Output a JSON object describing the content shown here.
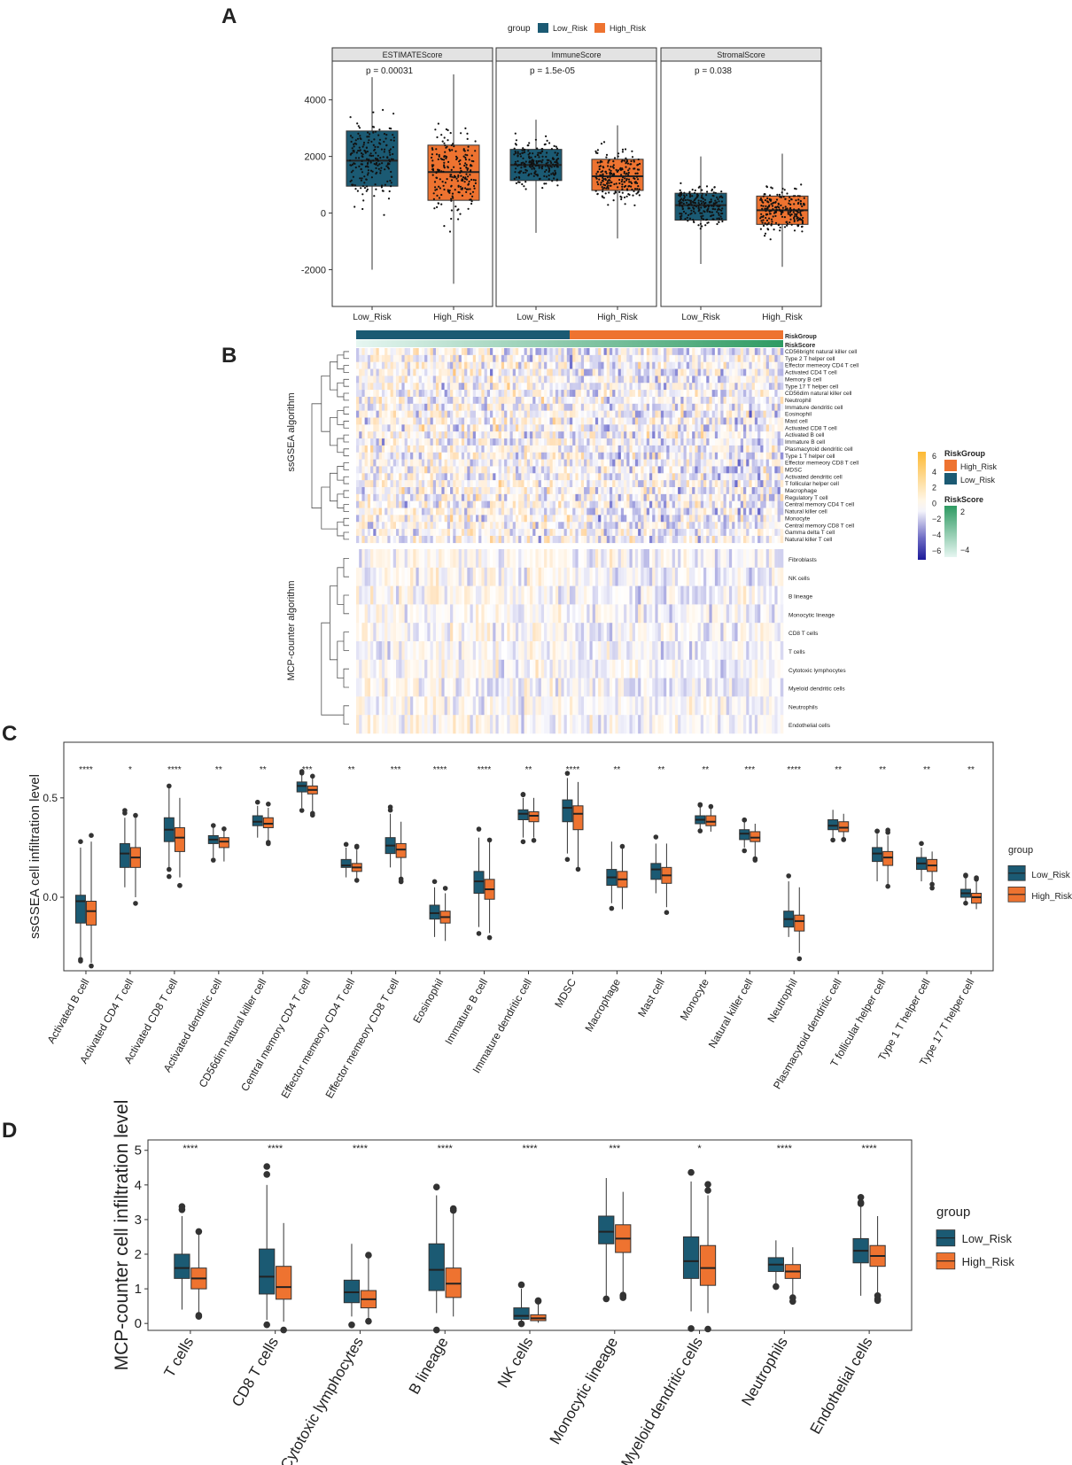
{
  "colors": {
    "low": "#1b5a73",
    "high": "#ee7330",
    "strip": "#e3e3e3",
    "pos": "#fdb933",
    "neg": "#1c1a9a",
    "score_light": "#e6f6f1",
    "score_dark": "#2e9a62"
  },
  "panel_labels": {
    "a": "A",
    "b": "B",
    "c": "C",
    "d": "D"
  },
  "chart_data": [
    {
      "id": "A",
      "type": "box",
      "legend_title": "group",
      "groups": [
        "Low_Risk",
        "High_Risk"
      ],
      "ylim": [
        -2800,
        5400
      ],
      "yticks": [
        -2000,
        0,
        2000,
        4000
      ],
      "facets": [
        {
          "title": "ESTIMATEScore",
          "p": "p = 0.00031",
          "boxes": [
            {
              "q1": 950,
              "med": 1850,
              "q3": 2900,
              "lo": -2000,
              "hi": 4800
            },
            {
              "q1": 450,
              "med": 1450,
              "q3": 2400,
              "lo": -2500,
              "hi": 4900
            }
          ]
        },
        {
          "title": "ImmuneScore",
          "p": "p = 1.5e-05",
          "boxes": [
            {
              "q1": 1150,
              "med": 1700,
              "q3": 2250,
              "lo": -700,
              "hi": 3300
            },
            {
              "q1": 800,
              "med": 1300,
              "q3": 1900,
              "lo": -900,
              "hi": 3100
            }
          ]
        },
        {
          "title": "StromalScore",
          "p": "p = 0.038",
          "boxes": [
            {
              "q1": -250,
              "med": 280,
              "q3": 700,
              "lo": -1800,
              "hi": 2000
            },
            {
              "q1": -400,
              "med": 100,
              "q3": 600,
              "lo": -1900,
              "hi": 2100
            }
          ]
        }
      ]
    },
    {
      "id": "B",
      "type": "heatmap",
      "annotations": [
        "RiskGroup",
        "RiskScore"
      ],
      "section_titles": [
        "ssGSEA algorithm",
        "MCP-counter algorithm"
      ],
      "ssgsea_rows": [
        "CD56bright natural killer cell",
        "Type 2 T helper cell",
        "Effector memeory CD4 T cell",
        "Activated CD4 T cell",
        "Memory B cell",
        "Type 17 T helper cell",
        "CD56dim natural killer cell",
        "Neutrophil",
        "Immature dendritic cell",
        "Eosinophil",
        "Mast cell",
        "Activated CD8 T cell",
        "Activated B cell",
        "Immature  B cell",
        "Plasmacytoid dendritic cell",
        "Type 1 T helper cell",
        "Effector memeory CD8 T cell",
        "MDSC",
        "Activated dendritic cell",
        "T follicular helper cell",
        "Macrophage",
        "Regulatory T cell",
        "Central memory CD4 T cell",
        "Natural killer cell",
        "Monocyte",
        "Central memory CD8 T cell",
        "Gamma delta T cell",
        "Natural killer T cell"
      ],
      "mcp_rows": [
        "Fibroblasts",
        "NK cells",
        "B lineage",
        "Monocytic lineage",
        "CD8 T cells",
        "T cells",
        "Cytotoxic lymphocytes",
        "Myeloid dendritic cells",
        "Neutrophils",
        "Endothelial cells"
      ],
      "legend": {
        "scale_ticks": [
          "6",
          "4",
          "2",
          "0",
          "−2",
          "−4",
          "−6"
        ],
        "riskgroup_title": "RiskGroup",
        "riskgroup_items": [
          "High_Risk",
          "Low_Risk"
        ],
        "riskscore_title": "RiskScore",
        "riskscore_ticks": [
          "2",
          "−4"
        ]
      }
    },
    {
      "id": "C",
      "type": "box",
      "ylabel": "ssGSEA cell infiltration level",
      "legend_title": "group",
      "groups": [
        "Low_Risk",
        "High_Risk"
      ],
      "ylim": [
        -0.37,
        0.78
      ],
      "yticks": [
        0.0,
        0.5
      ],
      "ytick_labels": [
        "0.0",
        "0.5"
      ],
      "categories": [
        "Activated B cell",
        "Activated CD4 T cell",
        "Activated CD8 T cell",
        "Activated dendritic cell",
        "CD56dim natural killer cell",
        "Central memory CD4 T cell",
        "Effector memeory CD4 T cell",
        "Effector memeory CD8 T cell",
        "Eosinophil",
        "Immature  B cell",
        "Immature dendritic cell",
        "MDSC",
        "Macrophage",
        "Mast cell",
        "Monocyte",
        "Natural killer cell",
        "Neutrophil",
        "Plasmacytoid dendritic cell",
        "T follicular helper cell",
        "Type 1 T helper cell",
        "Type 17 T helper cell"
      ],
      "significance": [
        "****",
        "*",
        "****",
        "**",
        "**",
        "***",
        "**",
        "***",
        "****",
        "****",
        "**",
        "****",
        "**",
        "**",
        "**",
        "***",
        "****",
        "**",
        "**",
        "**",
        "**"
      ],
      "low": [
        [
          -0.3,
          -0.13,
          -0.02,
          0.01,
          0.25
        ],
        [
          0.05,
          0.15,
          0.22,
          0.27,
          0.4
        ],
        [
          0.15,
          0.28,
          0.34,
          0.4,
          0.55
        ],
        [
          0.2,
          0.27,
          0.29,
          0.31,
          0.35
        ],
        [
          0.3,
          0.36,
          0.38,
          0.41,
          0.46
        ],
        [
          0.45,
          0.53,
          0.56,
          0.58,
          0.62
        ],
        [
          0.1,
          0.15,
          0.16,
          0.19,
          0.25
        ],
        [
          0.15,
          0.22,
          0.26,
          0.3,
          0.42
        ],
        [
          -0.2,
          -0.11,
          -0.08,
          -0.04,
          0.05
        ],
        [
          -0.15,
          0.02,
          0.08,
          0.13,
          0.3
        ],
        [
          0.3,
          0.39,
          0.42,
          0.44,
          0.5
        ],
        [
          0.22,
          0.38,
          0.45,
          0.49,
          0.6
        ],
        [
          -0.03,
          0.06,
          0.1,
          0.14,
          0.28
        ],
        [
          0.02,
          0.09,
          0.14,
          0.17,
          0.27
        ],
        [
          0.34,
          0.37,
          0.39,
          0.41,
          0.46
        ],
        [
          0.25,
          0.29,
          0.32,
          0.34,
          0.38
        ],
        [
          -0.2,
          -0.15,
          -0.11,
          -0.07,
          0.08
        ],
        [
          0.3,
          0.34,
          0.36,
          0.39,
          0.44
        ],
        [
          0.08,
          0.18,
          0.22,
          0.25,
          0.32
        ],
        [
          0.08,
          0.14,
          0.17,
          0.2,
          0.25
        ],
        [
          -0.02,
          0.0,
          0.02,
          0.04,
          0.1
        ]
      ],
      "high": [
        [
          -0.33,
          -0.14,
          -0.07,
          -0.02,
          0.28
        ],
        [
          0.0,
          0.15,
          0.2,
          0.25,
          0.4
        ],
        [
          0.1,
          0.23,
          0.3,
          0.35,
          0.5
        ],
        [
          0.18,
          0.25,
          0.28,
          0.3,
          0.34
        ],
        [
          0.28,
          0.35,
          0.37,
          0.4,
          0.45
        ],
        [
          0.43,
          0.52,
          0.54,
          0.56,
          0.6
        ],
        [
          0.09,
          0.13,
          0.15,
          0.17,
          0.24
        ],
        [
          0.1,
          0.2,
          0.24,
          0.27,
          0.38
        ],
        [
          -0.22,
          -0.13,
          -0.1,
          -0.07,
          0.02
        ],
        [
          -0.18,
          -0.01,
          0.04,
          0.09,
          0.28
        ],
        [
          0.3,
          0.38,
          0.41,
          0.43,
          0.5
        ],
        [
          0.15,
          0.34,
          0.42,
          0.46,
          0.58
        ],
        [
          -0.06,
          0.05,
          0.09,
          0.13,
          0.25
        ],
        [
          -0.05,
          0.07,
          0.11,
          0.15,
          0.27
        ],
        [
          0.33,
          0.36,
          0.38,
          0.41,
          0.45
        ],
        [
          0.2,
          0.28,
          0.3,
          0.33,
          0.37
        ],
        [
          -0.28,
          -0.17,
          -0.12,
          -0.09,
          0.05
        ],
        [
          0.3,
          0.33,
          0.35,
          0.38,
          0.42
        ],
        [
          0.06,
          0.16,
          0.2,
          0.23,
          0.31
        ],
        [
          0.07,
          0.13,
          0.16,
          0.19,
          0.23
        ],
        [
          -0.06,
          -0.03,
          0.0,
          0.02,
          0.08
        ]
      ],
      "legend_items": [
        "Low_Risk",
        "High_Risk"
      ]
    },
    {
      "id": "D",
      "type": "box",
      "ylabel": "MCP-counter cell infiltration level",
      "legend_title": "group",
      "groups": [
        "Low_Risk",
        "High_Risk"
      ],
      "ylim": [
        -0.2,
        5.3
      ],
      "yticks": [
        0,
        1,
        2,
        3,
        4,
        5
      ],
      "ytick_labels": [
        "0",
        "1",
        "2",
        "3",
        "4",
        "5"
      ],
      "categories": [
        "T cells",
        "CD8 T cells",
        "Cytotoxic lymphocytes",
        "B lineage",
        "NK cells",
        "Monocytic lineage",
        "Myeloid dendritic cells",
        "Neutrophils",
        "Endothelial cells"
      ],
      "significance": [
        "****",
        "****",
        "****",
        "****",
        "****",
        "***",
        "*",
        "****",
        "****"
      ],
      "low": [
        [
          0.4,
          1.3,
          1.6,
          2.0,
          3.1
        ],
        [
          0.1,
          0.85,
          1.35,
          2.15,
          4.0
        ],
        [
          0.2,
          0.6,
          0.9,
          1.25,
          2.3
        ],
        [
          0.3,
          0.95,
          1.55,
          2.3,
          3.7
        ],
        [
          0.05,
          0.12,
          0.22,
          0.45,
          1.0
        ],
        [
          0.8,
          2.3,
          2.65,
          3.1,
          4.2
        ],
        [
          0.35,
          1.3,
          1.8,
          2.5,
          4.1
        ],
        [
          1.1,
          1.5,
          1.7,
          1.9,
          2.4
        ],
        [
          0.8,
          1.75,
          2.1,
          2.45,
          3.4
        ]
      ],
      "high": [
        [
          0.3,
          1.0,
          1.3,
          1.6,
          2.6
        ],
        [
          0.05,
          0.7,
          1.05,
          1.65,
          2.9
        ],
        [
          0.1,
          0.45,
          0.7,
          0.95,
          1.9
        ],
        [
          0.2,
          0.75,
          1.15,
          1.6,
          3.2
        ],
        [
          0.02,
          0.08,
          0.15,
          0.25,
          0.6
        ],
        [
          0.9,
          2.05,
          2.45,
          2.85,
          3.8
        ],
        [
          0.3,
          1.1,
          1.6,
          2.25,
          3.7
        ],
        [
          0.8,
          1.3,
          1.5,
          1.7,
          2.2
        ],
        [
          0.9,
          1.65,
          1.95,
          2.25,
          3.1
        ]
      ],
      "legend_items": [
        "Low_Risk",
        "High_Risk"
      ]
    }
  ]
}
